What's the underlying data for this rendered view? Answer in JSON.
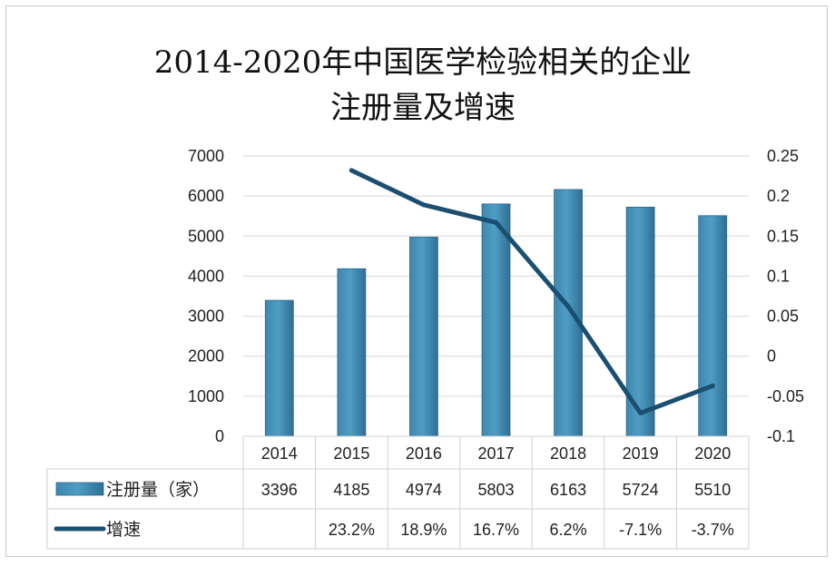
{
  "chart_data": {
    "type": "bar",
    "title_line1": "2014-2020年中国医学检验相关的企业",
    "title_line2": "注册量及增速",
    "categories": [
      "2014",
      "2015",
      "2016",
      "2017",
      "2018",
      "2019",
      "2020"
    ],
    "series": [
      {
        "name": "注册量（家）",
        "type": "bar",
        "axis": "left",
        "values": [
          3396,
          4185,
          4974,
          5803,
          6163,
          5724,
          5510
        ],
        "labels": [
          "3396",
          "4185",
          "4974",
          "5803",
          "6163",
          "5724",
          "5510"
        ],
        "color": "#4f9dc4"
      },
      {
        "name": "增速",
        "type": "line",
        "axis": "right",
        "values": [
          null,
          0.232,
          0.189,
          0.167,
          0.062,
          -0.071,
          -0.037
        ],
        "labels": [
          "",
          "23.2%",
          "18.9%",
          "16.7%",
          "6.2%",
          "-7.1%",
          "-3.7%"
        ],
        "color": "#1b4f72"
      }
    ],
    "y_left": {
      "min": 0,
      "max": 7000,
      "step": 1000,
      "ticks": [
        "0",
        "1000",
        "2000",
        "3000",
        "4000",
        "5000",
        "6000",
        "7000"
      ]
    },
    "y_right": {
      "min": -0.1,
      "max": 0.25,
      "step": 0.05,
      "ticks": [
        "-0.1",
        "-0.05",
        "0",
        "0.05",
        "0.1",
        "0.15",
        "0.2",
        "0.25"
      ]
    },
    "grid": true,
    "legend": "data-table"
  }
}
